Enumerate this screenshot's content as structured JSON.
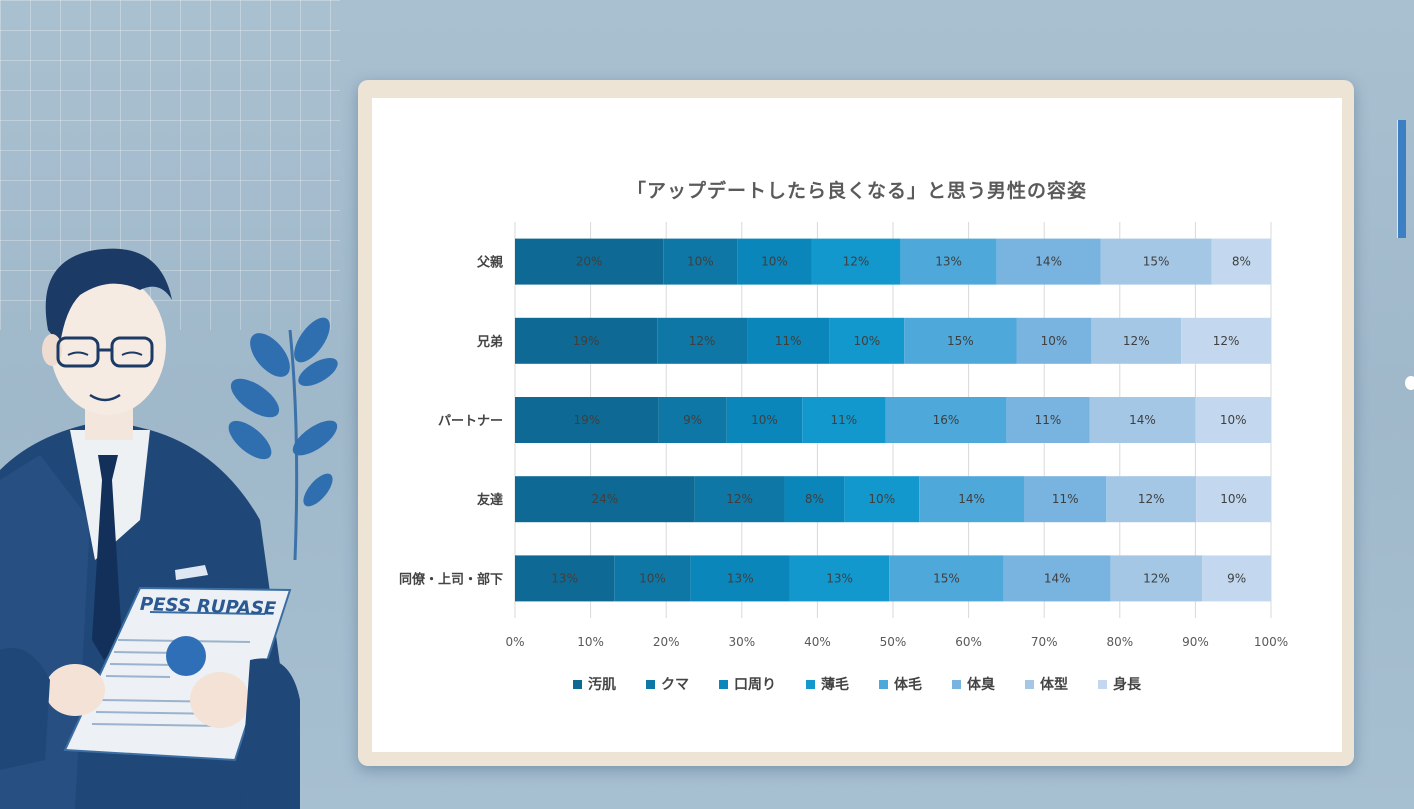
{
  "colors": {
    "series": [
      "#0e6a94",
      "#0f77a6",
      "#0a86ba",
      "#1298cd",
      "#4ea8d9",
      "#79b3df",
      "#a4c7e6",
      "#c3d8ee"
    ],
    "grid": "#d9d9d9",
    "axis_text": "#595959",
    "label_text": "#3f3f3f"
  },
  "chart_data": {
    "type": "bar",
    "orientation": "horizontal",
    "stacked": "percent",
    "title": "「アップデートしたら良くなる」と思う男性の容姿",
    "categories": [
      "父親",
      "兄弟",
      "パートナー",
      "友達",
      "同僚・上司・部下"
    ],
    "series": [
      {
        "name": "汚肌",
        "values": [
          20,
          19,
          19,
          24,
          13
        ]
      },
      {
        "name": "クマ",
        "values": [
          10,
          12,
          9,
          12,
          10
        ]
      },
      {
        "name": "口周り",
        "values": [
          10,
          11,
          10,
          8,
          13
        ]
      },
      {
        "name": "薄毛",
        "values": [
          12,
          10,
          11,
          10,
          13
        ]
      },
      {
        "name": "体毛",
        "values": [
          13,
          15,
          16,
          14,
          15
        ]
      },
      {
        "name": "体臭",
        "values": [
          14,
          10,
          11,
          11,
          14
        ]
      },
      {
        "name": "体型",
        "values": [
          15,
          12,
          14,
          12,
          12
        ]
      },
      {
        "name": "身長",
        "values": [
          8,
          12,
          10,
          10,
          9
        ]
      }
    ],
    "xlim": [
      0,
      100
    ],
    "xticks": [
      "0%",
      "10%",
      "20%",
      "30%",
      "40%",
      "50%",
      "60%",
      "70%",
      "80%",
      "90%",
      "100%"
    ],
    "grid": true,
    "legend": "bottom"
  },
  "illustration": {
    "document_text": "PESS RUPASE"
  }
}
